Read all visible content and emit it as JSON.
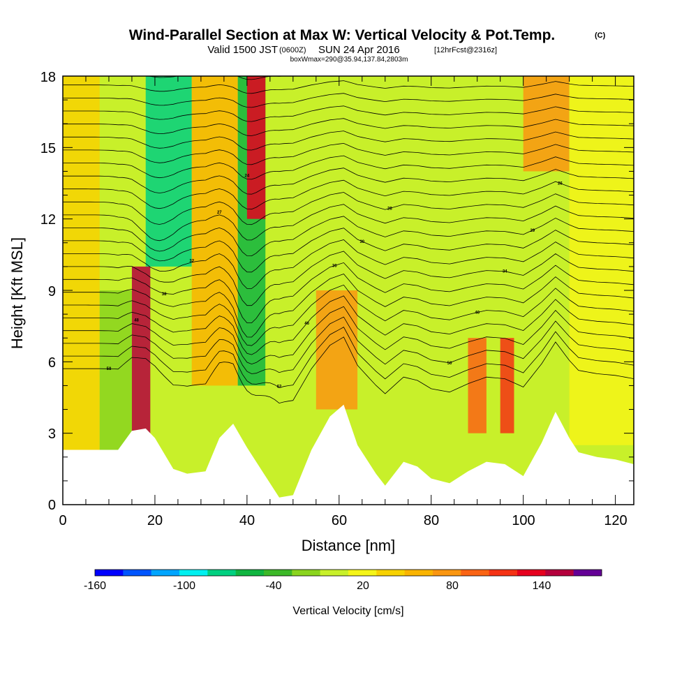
{
  "chart_data": {
    "type": "heatmap",
    "title": "Wind-Parallel Section at Max W: Vertical Velocity & Pot.Temp.",
    "title_mark": "(C)",
    "subtitle": {
      "valid": "Valid 1500 JST",
      "utc": "(0600Z)",
      "date": "SUN 24 Apr 2016",
      "forecast": "[12hrFcst@2316z]"
    },
    "subtitle2": "boxWmax=290@35.94,137.84,2803m",
    "xlabel": "Distance [nm]",
    "ylabel": "Height [Kft MSL]",
    "xlim": [
      0,
      124
    ],
    "ylim": [
      0,
      18
    ],
    "x_ticks": [
      "0",
      "20",
      "40",
      "60",
      "80",
      "100",
      "120"
    ],
    "y_ticks": [
      "0",
      "3",
      "6",
      "9",
      "12",
      "15",
      "18"
    ],
    "colorbar": {
      "label": "Vertical Velocity [cm/s]",
      "tick_labels": [
        "-160",
        "-100",
        "-40",
        "20",
        "80",
        "140"
      ],
      "colors": [
        "#0000ff",
        "#0055ff",
        "#00a5ff",
        "#00f0f0",
        "#00d080",
        "#10b540",
        "#3cb828",
        "#8ad41e",
        "#c8f02a",
        "#f5f518",
        "#f8d200",
        "#fab400",
        "#fa9610",
        "#fa6414",
        "#f53214",
        "#e6001e",
        "#b4003c",
        "#640096"
      ]
    },
    "terrain_kft": [
      [
        0,
        2.3
      ],
      [
        12,
        2.3
      ],
      [
        15,
        3.1
      ],
      [
        18,
        3.2
      ],
      [
        20,
        2.8
      ],
      [
        24,
        1.5
      ],
      [
        27,
        1.3
      ],
      [
        31,
        1.4
      ],
      [
        34,
        2.8
      ],
      [
        37,
        3.4
      ],
      [
        40,
        2.4
      ],
      [
        44,
        1.2
      ],
      [
        47,
        0.3
      ],
      [
        50,
        0.4
      ],
      [
        54,
        2.3
      ],
      [
        58,
        3.7
      ],
      [
        61,
        4.2
      ],
      [
        64,
        2.5
      ],
      [
        68,
        1.3
      ],
      [
        70,
        0.8
      ],
      [
        74,
        1.8
      ],
      [
        77,
        1.6
      ],
      [
        80,
        1.1
      ],
      [
        84,
        0.9
      ],
      [
        88,
        1.4
      ],
      [
        92,
        1.8
      ],
      [
        96,
        1.7
      ],
      [
        100,
        1.2
      ],
      [
        104,
        2.6
      ],
      [
        107,
        3.9
      ],
      [
        110,
        2.8
      ],
      [
        112,
        2.2
      ],
      [
        116,
        2.0
      ],
      [
        120,
        1.9
      ],
      [
        124,
        1.7
      ]
    ],
    "w_cells": [
      {
        "x0": 0,
        "x1": 8,
        "y0": 2.3,
        "y1": 18,
        "w": 20
      },
      {
        "x0": 8,
        "x1": 15,
        "y0": 2.3,
        "y1": 9,
        "w": -30
      },
      {
        "x0": 15,
        "x1": 19,
        "y0": 3,
        "y1": 10,
        "w": 150
      },
      {
        "x0": 18,
        "x1": 28,
        "y0": 10,
        "y1": 18,
        "w": -90
      },
      {
        "x0": 28,
        "x1": 38,
        "y0": 5,
        "y1": 18,
        "w": 40
      },
      {
        "x0": 38,
        "x1": 44,
        "y0": 5,
        "y1": 18,
        "w": -70
      },
      {
        "x0": 40,
        "x1": 44,
        "y0": 12,
        "y1": 18,
        "w": 130
      },
      {
        "x0": 44,
        "x1": 55,
        "y0": 3,
        "y1": 9,
        "w": -20
      },
      {
        "x0": 55,
        "x1": 64,
        "y0": 4,
        "y1": 9,
        "w": 70
      },
      {
        "x0": 64,
        "x1": 80,
        "y0": 2,
        "y1": 18,
        "w": -10
      },
      {
        "x0": 88,
        "x1": 92,
        "y0": 3,
        "y1": 7,
        "w": 90
      },
      {
        "x0": 95,
        "x1": 98,
        "y0": 3,
        "y1": 7,
        "w": 110
      },
      {
        "x0": 100,
        "x1": 110,
        "y0": 14,
        "y1": 18,
        "w": 70
      },
      {
        "x0": 110,
        "x1": 124,
        "y0": 2.5,
        "y1": 18,
        "w": 10
      }
    ],
    "theta_contour_labels": [
      "58",
      "62",
      "50",
      "48",
      "46",
      "40",
      "38",
      "36",
      "34",
      "32",
      "30",
      "29",
      "27",
      "28",
      "26",
      "24"
    ]
  }
}
